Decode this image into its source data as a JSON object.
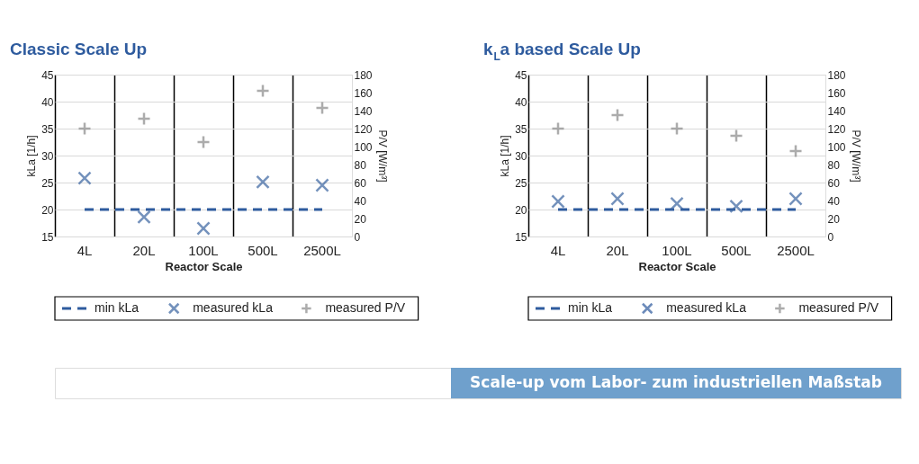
{
  "chart_data": [
    {
      "type": "scatter",
      "title": "Classic Scale Up",
      "xlabel": "Reactor Scale",
      "ylabel": "kLa [1/h]",
      "y2label": "P/V [W/m³]",
      "categories": [
        "4L",
        "20L",
        "100L",
        "500L",
        "2500L"
      ],
      "series": [
        {
          "name": "min kLa",
          "type": "line",
          "line_style": "dashed",
          "color": "#2e5b9e",
          "values": [
            20,
            20,
            20,
            20,
            20
          ]
        },
        {
          "name": "measured kLa",
          "marker": "cross",
          "color": "#3a64a0",
          "values": [
            25.8,
            18.6,
            16.5,
            25.1,
            24.5
          ]
        },
        {
          "name": "measured P/V",
          "marker": "plus",
          "color": "#8a8a8a",
          "axis": "y2",
          "values": [
            120,
            131,
            105,
            162,
            143
          ]
        }
      ],
      "ylim": [
        15,
        45
      ],
      "yticks": [
        15,
        20,
        25,
        30,
        35,
        40,
        45
      ],
      "y2lim": [
        0,
        180
      ],
      "y2ticks": [
        0,
        20,
        40,
        60,
        80,
        100,
        120,
        140,
        160,
        180
      ],
      "grid": true,
      "legend": "bottom"
    },
    {
      "type": "scatter",
      "title": "k$_{L}$a based Scale Up",
      "xlabel": "Reactor Scale",
      "ylabel": "kLa [1/h]",
      "y2label": "P/V [W/m³]",
      "categories": [
        "4L",
        "20L",
        "100L",
        "500L",
        "2500L"
      ],
      "series": [
        {
          "name": "min kLa",
          "type": "line",
          "line_style": "dashed",
          "color": "#2e5b9e",
          "values": [
            20,
            20,
            20,
            20,
            20
          ]
        },
        {
          "name": "measured kLa",
          "marker": "cross",
          "color": "#2e5b9e",
          "values": [
            21.5,
            22,
            21.1,
            20.6,
            22
          ]
        },
        {
          "name": "measured P/V",
          "marker": "plus",
          "color": "#8a8a8a",
          "axis": "y2",
          "values": [
            120,
            135,
            120,
            112,
            95
          ]
        }
      ],
      "ylim": [
        15,
        45
      ],
      "yticks": [
        15,
        20,
        25,
        30,
        35,
        40,
        45
      ],
      "y2lim": [
        0,
        180
      ],
      "y2ticks": [
        0,
        20,
        40,
        60,
        80,
        100,
        120,
        140,
        160,
        180
      ],
      "grid": true,
      "legend": "bottom",
      "annotations": [
        "Scale-up vom Labor- zum industriellen Maßstab"
      ]
    }
  ]
}
